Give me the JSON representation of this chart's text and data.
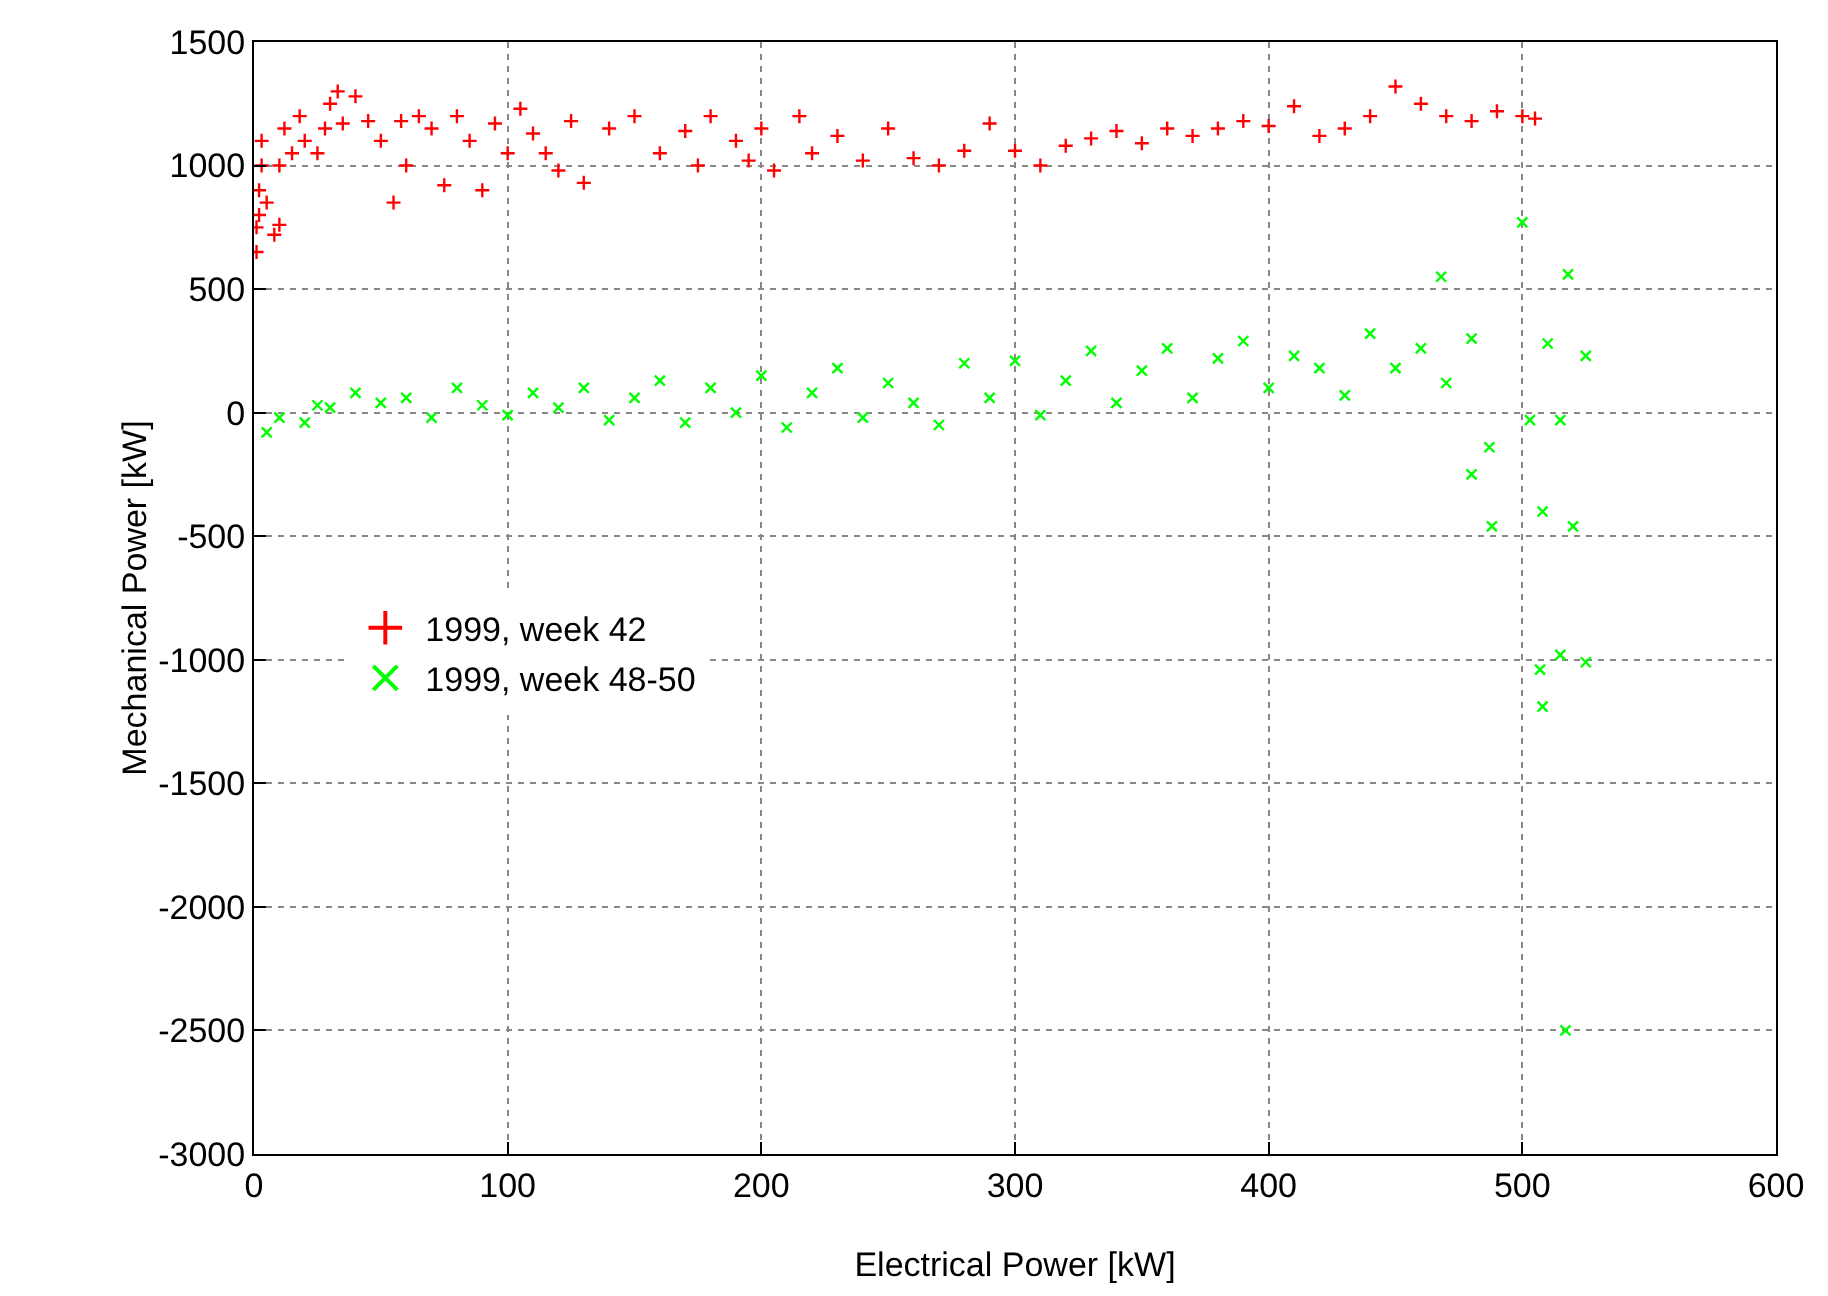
{
  "chart_data": {
    "type": "scatter",
    "xlabel": "Electrical Power [kW]",
    "ylabel": "Mechanical Power [kW]",
    "xlim": [
      0,
      600
    ],
    "xticks": [
      0,
      100,
      200,
      300,
      400,
      500,
      600
    ],
    "ylim": [
      -3000,
      1500
    ],
    "yticks": [
      -3000,
      -2500,
      -2000,
      -1500,
      -1000,
      -500,
      0,
      500,
      1000,
      1500
    ],
    "grid": true,
    "legend": "left",
    "marker": "cross",
    "series": [
      {
        "name": "1999, week 42",
        "color": "#ff0000",
        "x": [
          1,
          1,
          2,
          2,
          3,
          3,
          5,
          8,
          10,
          10,
          12,
          15,
          18,
          20,
          25,
          28,
          30,
          33,
          35,
          40,
          45,
          50,
          55,
          58,
          60,
          65,
          70,
          75,
          80,
          85,
          90,
          95,
          100,
          105,
          110,
          115,
          120,
          125,
          130,
          140,
          150,
          160,
          170,
          175,
          180,
          190,
          195,
          200,
          205,
          215,
          220,
          230,
          240,
          250,
          260,
          270,
          280,
          290,
          300,
          310,
          320,
          330,
          340,
          350,
          360,
          370,
          380,
          390,
          400,
          410,
          420,
          430,
          440,
          450,
          460,
          470,
          480,
          490,
          500,
          505
        ],
        "values": [
          650,
          750,
          800,
          900,
          1000,
          1100,
          850,
          720,
          760,
          1000,
          1150,
          1050,
          1200,
          1100,
          1050,
          1150,
          1250,
          1300,
          1170,
          1280,
          1180,
          1100,
          850,
          1180,
          1000,
          1200,
          1150,
          920,
          1200,
          1100,
          900,
          1170,
          1050,
          1230,
          1130,
          1050,
          980,
          1180,
          930,
          1150,
          1200,
          1050,
          1140,
          1000,
          1200,
          1100,
          1020,
          1150,
          980,
          1200,
          1050,
          1120,
          1020,
          1150,
          1030,
          1000,
          1060,
          1170,
          1060,
          1000,
          1080,
          1110,
          1140,
          1090,
          1150,
          1120,
          1150,
          1180,
          1160,
          1240,
          1120,
          1150,
          1200,
          1320,
          1250,
          1200,
          1180,
          1220,
          1200,
          1190
        ]
      },
      {
        "name": "1999, week 48-50",
        "color": "#00ff00",
        "x": [
          5,
          10,
          20,
          25,
          30,
          40,
          50,
          60,
          70,
          80,
          90,
          100,
          110,
          120,
          130,
          140,
          150,
          160,
          170,
          180,
          190,
          200,
          210,
          220,
          230,
          240,
          250,
          260,
          270,
          280,
          290,
          300,
          310,
          320,
          330,
          340,
          350,
          360,
          370,
          380,
          390,
          400,
          410,
          420,
          430,
          440,
          450,
          460,
          470,
          480,
          500,
          468,
          518,
          480,
          488,
          487,
          508,
          520,
          507,
          508,
          515,
          525,
          517,
          503,
          510,
          525,
          515
        ],
        "values": [
          -80,
          -20,
          -40,
          30,
          20,
          80,
          40,
          60,
          -20,
          100,
          30,
          -10,
          80,
          20,
          100,
          -30,
          60,
          130,
          -40,
          100,
          0,
          150,
          -60,
          80,
          180,
          -20,
          120,
          40,
          -50,
          200,
          60,
          210,
          -10,
          130,
          250,
          40,
          170,
          260,
          60,
          220,
          290,
          100,
          230,
          180,
          70,
          320,
          180,
          260,
          120,
          300,
          770,
          550,
          560,
          -250,
          -460,
          -140,
          -400,
          -460,
          -1040,
          -1190,
          -980,
          -1010,
          -2500,
          -30,
          280,
          230,
          -30
        ]
      }
    ]
  }
}
